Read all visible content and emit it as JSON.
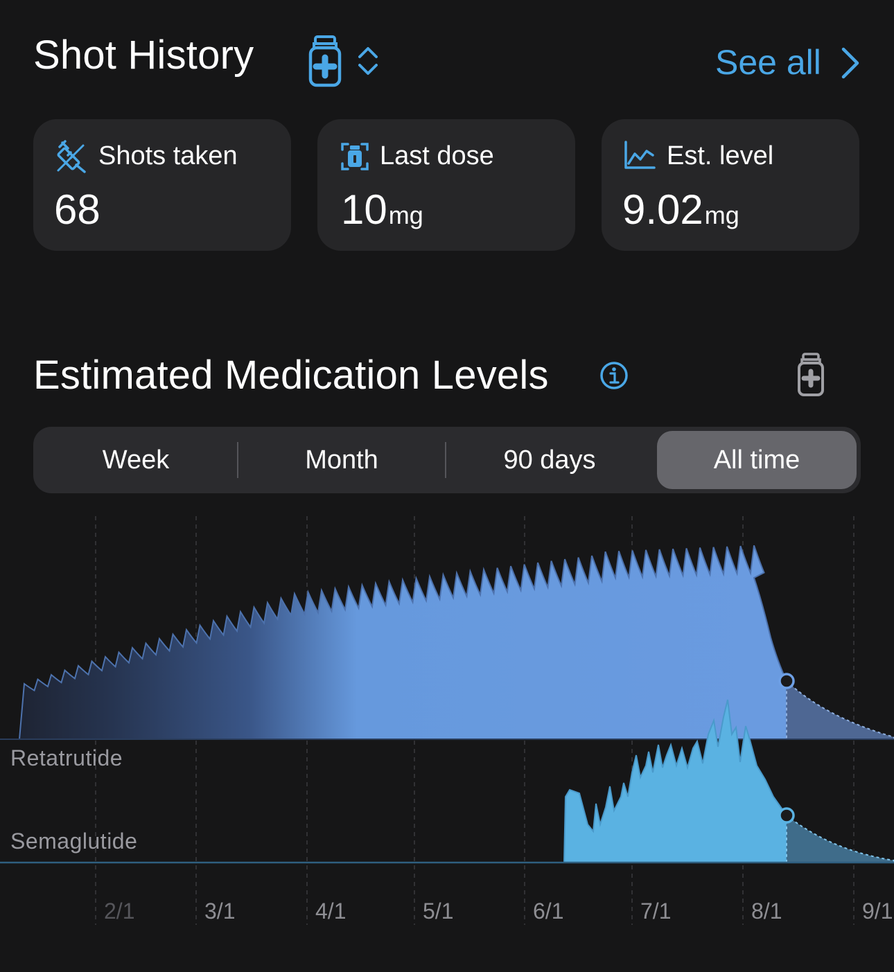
{
  "header": {
    "title": "Shot History",
    "see_all": "See all",
    "icons": {
      "vial": "vial-icon",
      "toggle": "chevron-up-down-icon",
      "chevron": "chevron-right-icon"
    }
  },
  "stats": [
    {
      "label": "Shots taken",
      "value": "68",
      "unit": "",
      "icon": "syringe-icon"
    },
    {
      "label": "Last dose",
      "value": "10",
      "unit": "mg",
      "icon": "dose-icon"
    },
    {
      "label": "Est. level",
      "value": "9.02",
      "unit": "mg",
      "icon": "chart-line-icon"
    }
  ],
  "levels": {
    "title": "Estimated Medication Levels",
    "info_icon": "info-icon",
    "vial_icon": "vial-icon"
  },
  "range_tabs": [
    "Week",
    "Month",
    "90 days",
    "All time"
  ],
  "selected_range": "All time",
  "colors": {
    "accent": "#4aa7e6",
    "retatrutide": "#6699dd",
    "semaglutide": "#5ab2e2",
    "background": "#161617",
    "card": "#262628"
  },
  "chart_data": {
    "type": "area",
    "x_ticks": [
      "2/1",
      "3/1",
      "4/1",
      "5/1",
      "6/1",
      "7/1",
      "8/1",
      "9/1"
    ],
    "series": [
      {
        "name": "Retatrutide"
      },
      {
        "name": "Semaglutide"
      }
    ],
    "grid": "vertical dashed",
    "projection_after": "8/1"
  }
}
